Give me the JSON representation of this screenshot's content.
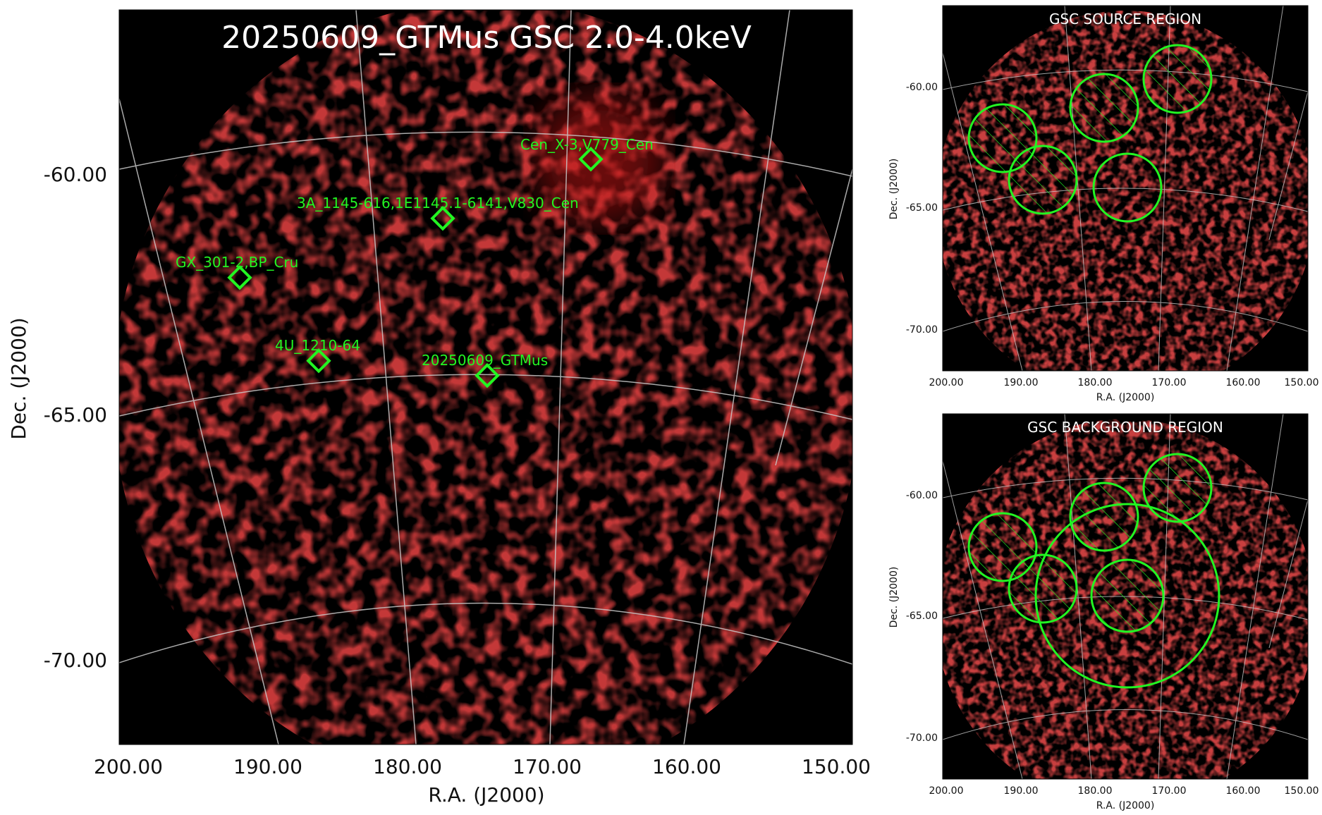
{
  "main_panel": {
    "title": "20250609_GTMus GSC 2.0-4.0keV",
    "xlabel": "R.A. (J2000)",
    "ylabel": "Dec. (J2000)",
    "ra_ticks": [
      "200.00",
      "190.00",
      "180.00",
      "170.00",
      "160.00",
      "150.00"
    ],
    "dec_ticks": [
      "-60.00",
      "-65.00",
      "-70.00"
    ],
    "sources": [
      {
        "label": "Cen_X-3,V779_Cen"
      },
      {
        "label": "3A_1145-616,1E1145.1-6141,V830_Cen"
      },
      {
        "label": "GX_301-2,BP_Cru"
      },
      {
        "label": "4U_1210-64"
      },
      {
        "label": "20250609_GTMus"
      }
    ]
  },
  "source_panel": {
    "title": "GSC SOURCE REGION",
    "xlabel": "R.A. (J2000)",
    "ylabel": "Dec. (J2000)",
    "ra_ticks": [
      "200.00",
      "190.00",
      "180.00",
      "170.00",
      "160.00",
      "150.00"
    ],
    "dec_ticks": [
      "-60.00",
      "-65.00",
      "-70.00"
    ]
  },
  "background_panel": {
    "title": "GSC BACKGROUND REGION",
    "xlabel": "R.A. (J2000)",
    "ylabel": "Dec. (J2000)",
    "ra_ticks": [
      "200.00",
      "190.00",
      "180.00",
      "170.00",
      "160.00",
      "150.00"
    ],
    "dec_ticks": [
      "-60.00",
      "-65.00",
      "-70.00"
    ]
  },
  "colors": {
    "image_bg": "#000000",
    "emission": "#a01010",
    "marker": "#22f522",
    "grid": "#c8c8c8"
  }
}
